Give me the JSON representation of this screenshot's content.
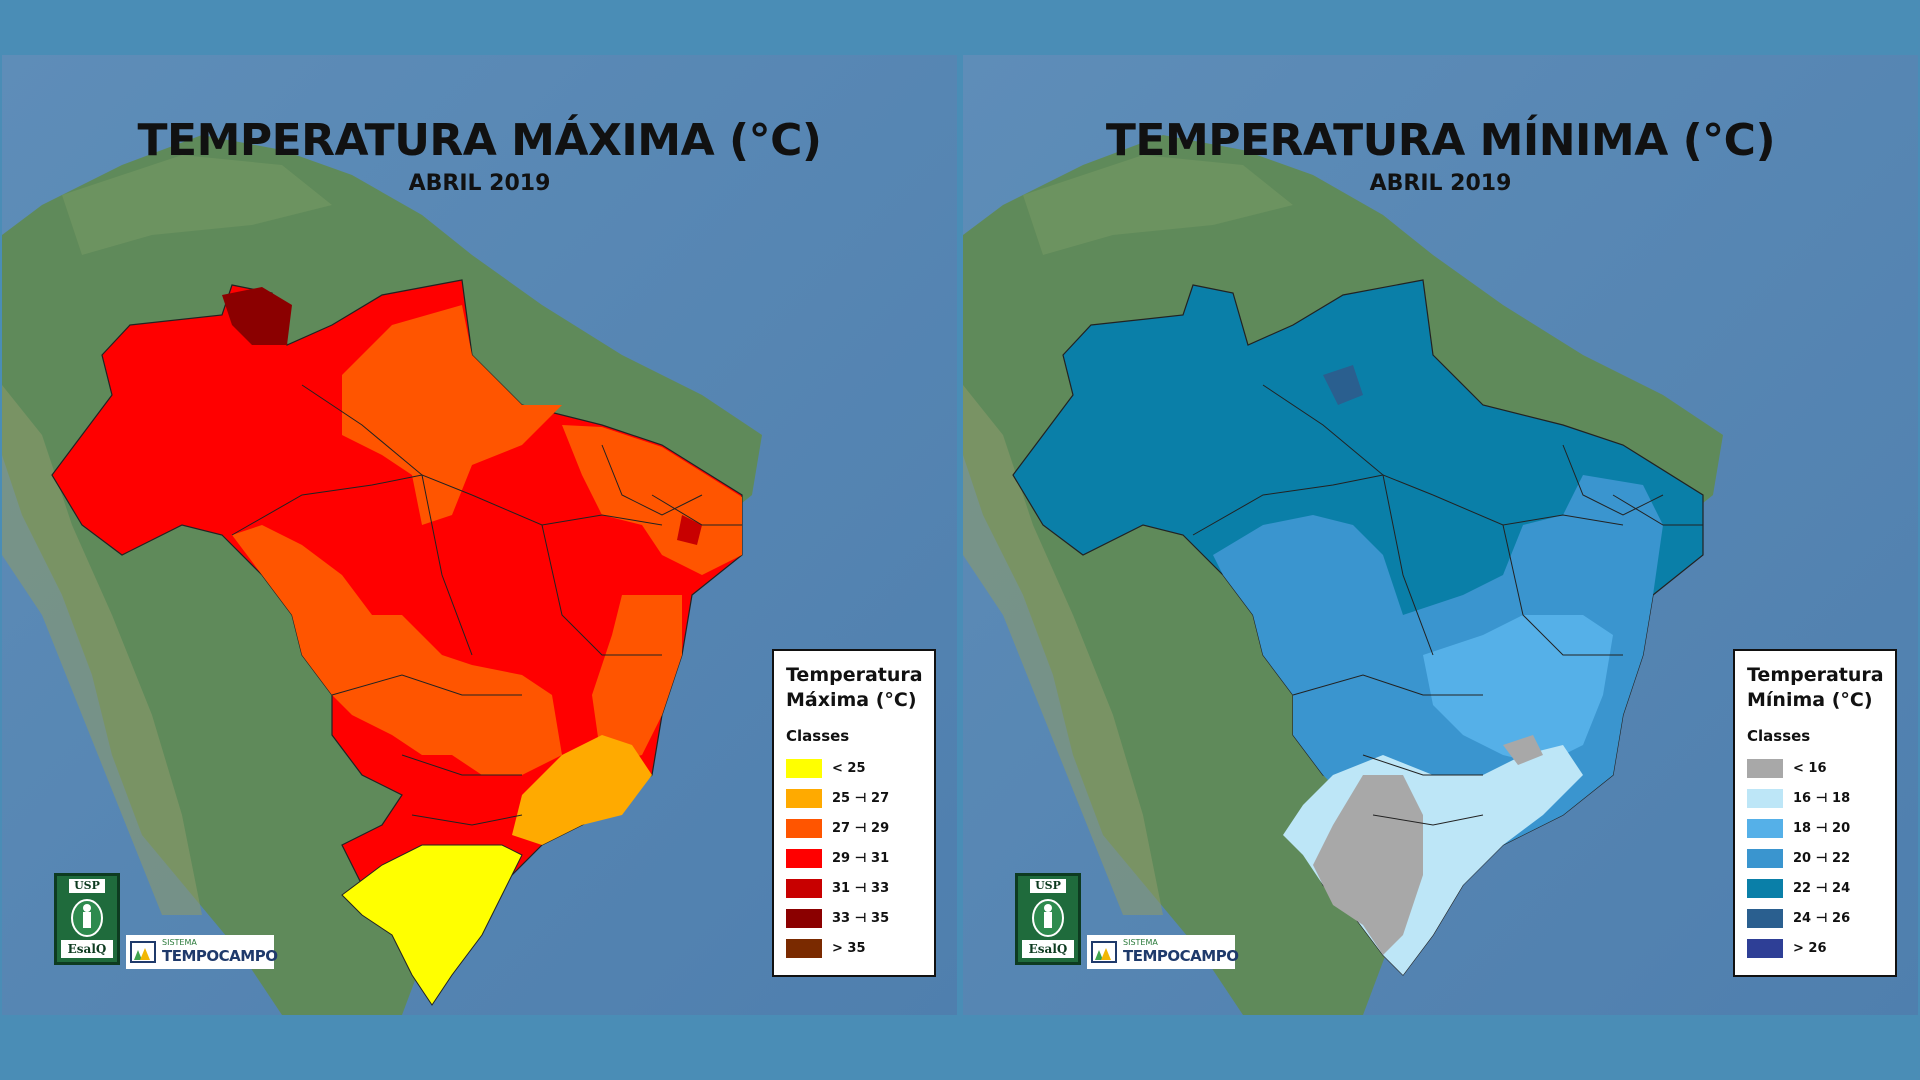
{
  "maps": [
    {
      "title": "TEMPERATURA MÁXIMA (°C)",
      "subtitle": "ABRIL 2019",
      "legend": {
        "title_line1": "Temperatura",
        "title_line2": "Máxima (°C)",
        "classes_label": "Classes",
        "items": [
          {
            "label": "< 25",
            "color": "#ffff00"
          },
          {
            "label": "25 ⊣ 27",
            "color": "#ffaa00"
          },
          {
            "label": "27 ⊣ 29",
            "color": "#ff5500"
          },
          {
            "label": "29 ⊣ 31",
            "color": "#ff0000"
          },
          {
            "label": "31 ⊣ 33",
            "color": "#c80000"
          },
          {
            "label": "33 ⊣ 35",
            "color": "#8b0000"
          },
          {
            "label": "> 35",
            "color": "#7a2a00"
          }
        ]
      }
    },
    {
      "title": "TEMPERATURA MÍNIMA (°C)",
      "subtitle": "ABRIL 2019",
      "legend": {
        "title_line1": "Temperatura",
        "title_line2": "Mínima (°C)",
        "classes_label": "Classes",
        "items": [
          {
            "label": "< 16",
            "color": "#a8a8a8"
          },
          {
            "label": "16 ⊣ 18",
            "color": "#bde6f7"
          },
          {
            "label": "18 ⊣ 20",
            "color": "#55b0e8"
          },
          {
            "label": "20 ⊣ 22",
            "color": "#3a95cf"
          },
          {
            "label": "22 ⊣ 24",
            "color": "#0a7fa8"
          },
          {
            "label": "24 ⊣ 26",
            "color": "#2a5f8f"
          },
          {
            "label": "> 26",
            "color": "#2e3f96"
          }
        ]
      }
    }
  ],
  "logos": {
    "usp": "USP",
    "esalq": "EsalQ",
    "sistema": "SISTEMA",
    "tempocampo": "TEMPOCAMPO"
  }
}
